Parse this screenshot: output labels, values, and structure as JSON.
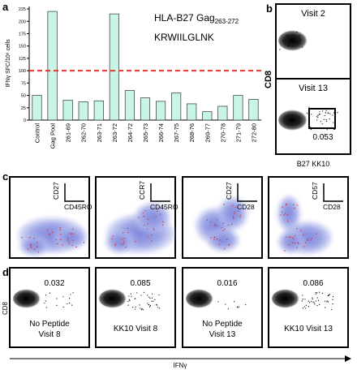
{
  "chart_data": {
    "type": "bar",
    "title": "HLA-B27 Gag",
    "title_subscript": "263-272",
    "subtitle": "KRWIILGLNK",
    "y_label": "IFNγ SFC/10⁶ cells",
    "categories": [
      "Control",
      "Gag Pool",
      "261-69",
      "262-70",
      "263-71",
      "263-72",
      "264-72",
      "265-73",
      "266-74",
      "267-75",
      "268-76",
      "269-77",
      "270-78",
      "271-79",
      "272-80"
    ],
    "values": [
      50,
      220,
      40,
      37,
      39,
      215,
      60,
      45,
      38,
      55,
      33,
      17,
      28,
      50,
      42
    ],
    "color": "#c8f5e4",
    "ylim": [
      0,
      230
    ],
    "yticks": [
      0,
      25,
      50,
      75,
      100,
      125,
      150,
      175,
      200,
      225
    ],
    "threshold": 100,
    "threshold_color": "#e8322b"
  },
  "panel_labels": [
    "a",
    "b",
    "c",
    "d"
  ],
  "panel_b": {
    "y_label": "CD8",
    "x_label": "B27 KK10",
    "plots": [
      {
        "label": "Visit 2"
      },
      {
        "label": "Visit 13",
        "gate": "0.053"
      }
    ]
  },
  "panel_c": {
    "plots": [
      {
        "y_marker": "CD27",
        "x_marker": "CD45RO"
      },
      {
        "y_marker": "CCR7",
        "x_marker": "CD45RO"
      },
      {
        "y_marker": "CD27",
        "x_marker": "CD28"
      },
      {
        "y_marker": "CD57",
        "x_marker": "CD28"
      }
    ]
  },
  "panel_d": {
    "y_label": "CD8",
    "x_label": "IFNγ",
    "plots": [
      {
        "frequency": "0.032",
        "label": [
          "No Peptide",
          "Visit 8"
        ]
      },
      {
        "frequency": "0.085",
        "label": [
          "KK10 Visit 8"
        ]
      },
      {
        "frequency": "0.016",
        "label": [
          "No Peptide",
          "Visit 13"
        ]
      },
      {
        "frequency": "0.086",
        "label": [
          "KK10 Visit 13"
        ]
      }
    ]
  }
}
